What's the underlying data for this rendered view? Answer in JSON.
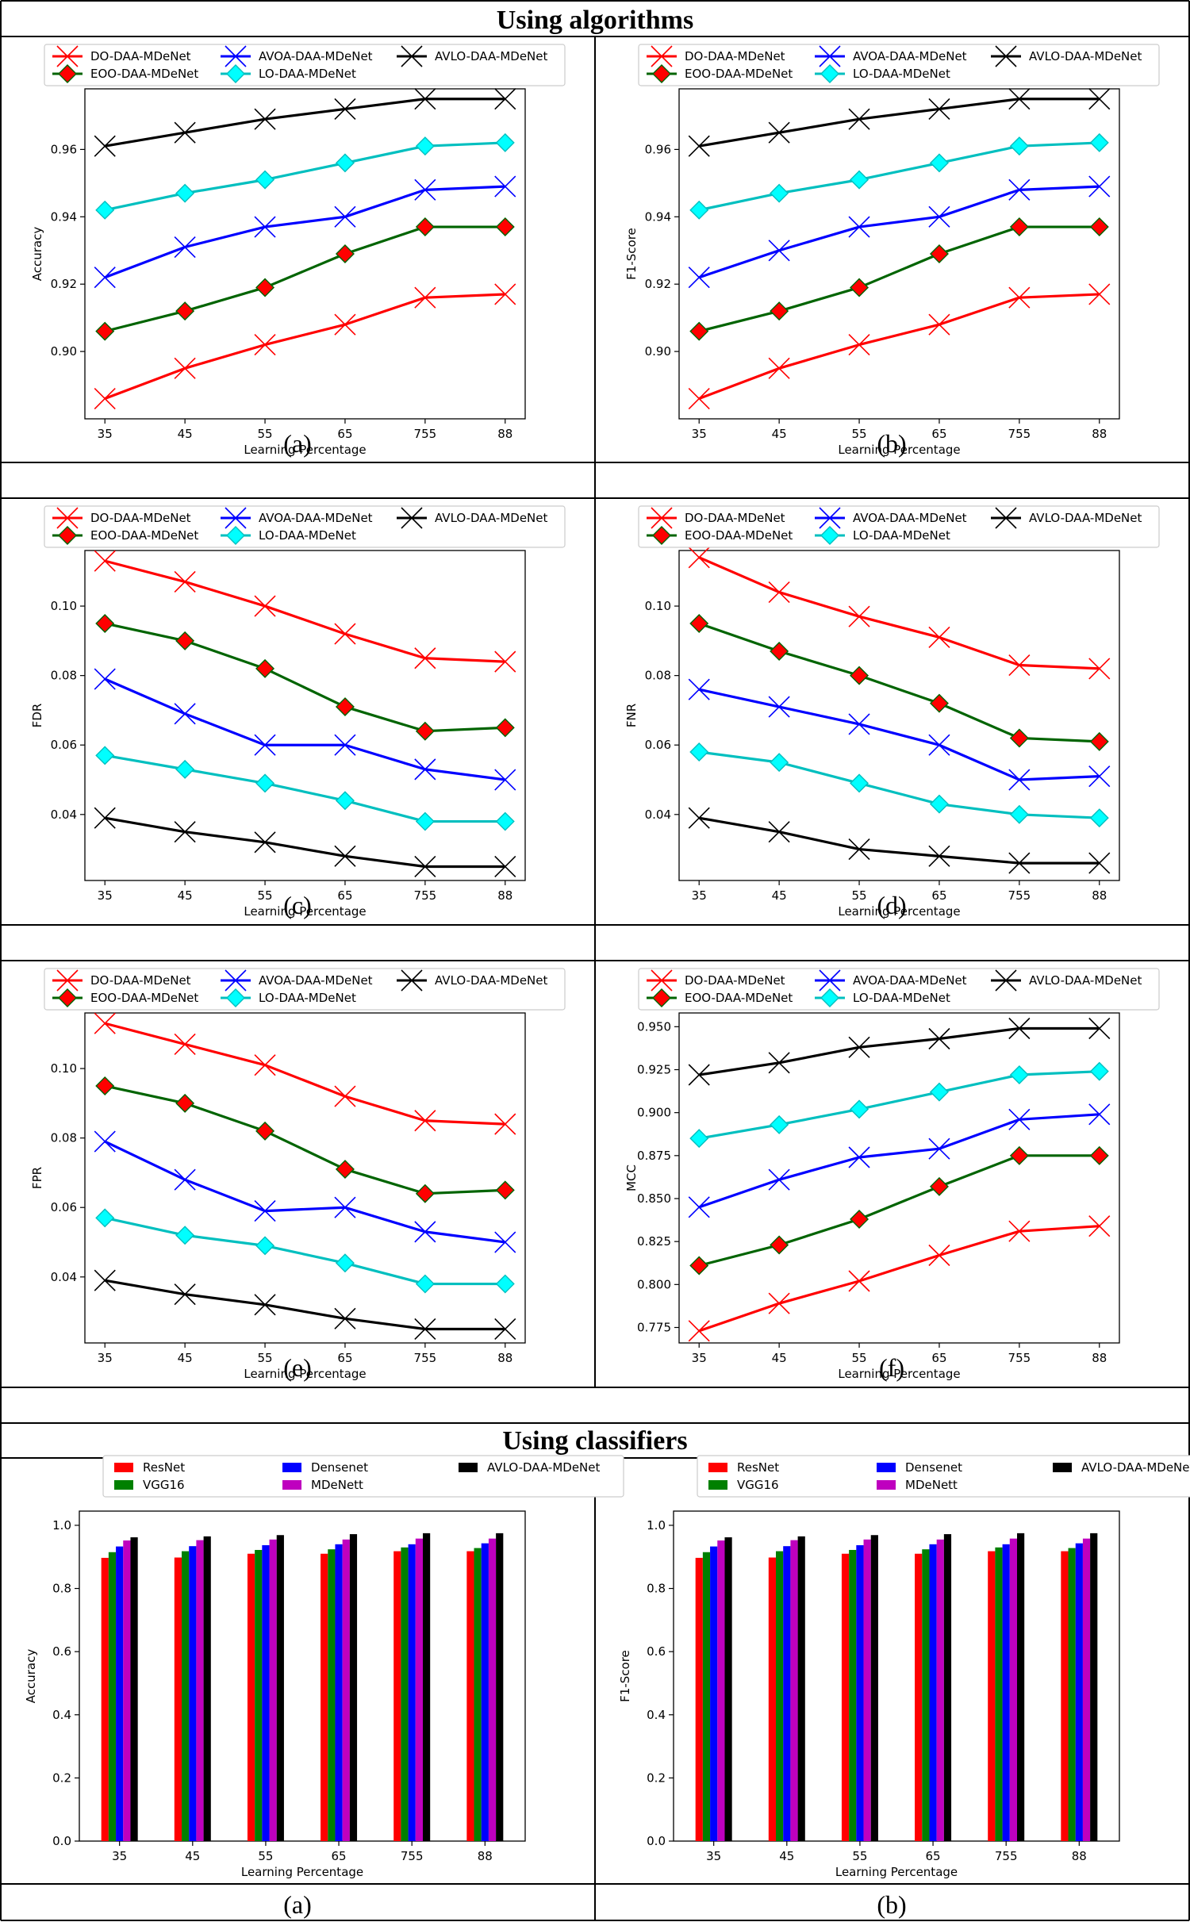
{
  "sections": {
    "algorithms": "Using algorithms",
    "classifiers": "Using classifiers"
  },
  "colors": {
    "DO": "#ff0000",
    "EOO": "#006400",
    "EOO_marker": "#ff0000",
    "AVOA": "#0000ff",
    "LO": "#00bfbf",
    "LO_marker": "#00ffff",
    "AVLO": "#000000",
    "ResNet": "#ff0000",
    "VGG16": "#008000",
    "Densenet": "#0000ff",
    "MDeNett": "#bf00bf",
    "AVLO_bar": "#000000"
  },
  "chart_data": [
    {
      "id": "alg-a",
      "type": "line",
      "caption": "(a)",
      "xlabel": "Learning Percentage",
      "ylabel": "Accuracy",
      "categories": [
        "35",
        "45",
        "55",
        "65",
        "755",
        "88"
      ],
      "ylim": [
        0.88,
        0.978
      ],
      "yticks": [
        0.9,
        0.92,
        0.94,
        0.96
      ],
      "ytick_labels": [
        "0.90",
        "0.92",
        "0.94",
        "0.96"
      ],
      "legend": "top",
      "series": [
        {
          "name": "DO-DAA-MDeNet",
          "key": "DO",
          "marker": "x",
          "values": [
            0.886,
            0.895,
            0.902,
            0.908,
            0.916,
            0.917
          ]
        },
        {
          "name": "EOO-DAA-MDeNet",
          "key": "EOO",
          "marker": "diamond",
          "values": [
            0.906,
            0.912,
            0.919,
            0.929,
            0.937,
            0.937
          ]
        },
        {
          "name": "AVOA-DAA-MDeNet",
          "key": "AVOA",
          "marker": "x",
          "values": [
            0.922,
            0.931,
            0.937,
            0.94,
            0.948,
            0.949
          ]
        },
        {
          "name": "LO-DAA-MDeNet",
          "key": "LO",
          "marker": "diamond",
          "values": [
            0.942,
            0.947,
            0.951,
            0.956,
            0.961,
            0.962
          ]
        },
        {
          "name": "AVLO-DAA-MDeNet",
          "key": "AVLO",
          "marker": "x",
          "values": [
            0.961,
            0.965,
            0.969,
            0.972,
            0.975,
            0.975
          ]
        }
      ]
    },
    {
      "id": "alg-b",
      "type": "line",
      "caption": "(b)",
      "xlabel": "Learning Percentage",
      "ylabel": "F1-Score",
      "categories": [
        "35",
        "45",
        "55",
        "65",
        "755",
        "88"
      ],
      "ylim": [
        0.88,
        0.978
      ],
      "yticks": [
        0.9,
        0.92,
        0.94,
        0.96
      ],
      "ytick_labels": [
        "0.90",
        "0.92",
        "0.94",
        "0.96"
      ],
      "legend": "top",
      "series": [
        {
          "name": "DO-DAA-MDeNet",
          "key": "DO",
          "marker": "x",
          "values": [
            0.886,
            0.895,
            0.902,
            0.908,
            0.916,
            0.917
          ]
        },
        {
          "name": "EOO-DAA-MDeNet",
          "key": "EOO",
          "marker": "diamond",
          "values": [
            0.906,
            0.912,
            0.919,
            0.929,
            0.937,
            0.937
          ]
        },
        {
          "name": "AVOA-DAA-MDeNet",
          "key": "AVOA",
          "marker": "x",
          "values": [
            0.922,
            0.93,
            0.937,
            0.94,
            0.948,
            0.949
          ]
        },
        {
          "name": "LO-DAA-MDeNet",
          "key": "LO",
          "marker": "diamond",
          "values": [
            0.942,
            0.947,
            0.951,
            0.956,
            0.961,
            0.962
          ]
        },
        {
          "name": "AVLO-DAA-MDeNet",
          "key": "AVLO",
          "marker": "x",
          "values": [
            0.961,
            0.965,
            0.969,
            0.972,
            0.975,
            0.975
          ]
        }
      ]
    },
    {
      "id": "alg-c",
      "type": "line",
      "caption": "(c)",
      "xlabel": "Learning Percentage",
      "ylabel": "FDR",
      "categories": [
        "35",
        "45",
        "55",
        "65",
        "755",
        "88"
      ],
      "ylim": [
        0.021,
        0.116
      ],
      "yticks": [
        0.04,
        0.06,
        0.08,
        0.1
      ],
      "ytick_labels": [
        "0.04",
        "0.06",
        "0.08",
        "0.10"
      ],
      "legend": "top",
      "series": [
        {
          "name": "DO-DAA-MDeNet",
          "key": "DO",
          "marker": "x",
          "values": [
            0.113,
            0.107,
            0.1,
            0.092,
            0.085,
            0.084
          ]
        },
        {
          "name": "EOO-DAA-MDeNet",
          "key": "EOO",
          "marker": "diamond",
          "values": [
            0.095,
            0.09,
            0.082,
            0.071,
            0.064,
            0.065
          ]
        },
        {
          "name": "AVOA-DAA-MDeNet",
          "key": "AVOA",
          "marker": "x",
          "values": [
            0.079,
            0.069,
            0.06,
            0.06,
            0.053,
            0.05
          ]
        },
        {
          "name": "LO-DAA-MDeNet",
          "key": "LO",
          "marker": "diamond",
          "values": [
            0.057,
            0.053,
            0.049,
            0.044,
            0.038,
            0.038
          ]
        },
        {
          "name": "AVLO-DAA-MDeNet",
          "key": "AVLO",
          "marker": "x",
          "values": [
            0.039,
            0.035,
            0.032,
            0.028,
            0.025,
            0.025
          ]
        }
      ]
    },
    {
      "id": "alg-d",
      "type": "line",
      "caption": "(d)",
      "xlabel": "Learning Percentage",
      "ylabel": "FNR",
      "categories": [
        "35",
        "45",
        "55",
        "65",
        "755",
        "88"
      ],
      "ylim": [
        0.021,
        0.116
      ],
      "yticks": [
        0.04,
        0.06,
        0.08,
        0.1
      ],
      "ytick_labels": [
        "0.04",
        "0.06",
        "0.08",
        "0.10"
      ],
      "legend": "top",
      "series": [
        {
          "name": "DO-DAA-MDeNet",
          "key": "DO",
          "marker": "x",
          "values": [
            0.114,
            0.104,
            0.097,
            0.091,
            0.083,
            0.082
          ]
        },
        {
          "name": "EOO-DAA-MDeNet",
          "key": "EOO",
          "marker": "diamond",
          "values": [
            0.095,
            0.087,
            0.08,
            0.072,
            0.062,
            0.061
          ]
        },
        {
          "name": "AVOA-DAA-MDeNet",
          "key": "AVOA",
          "marker": "x",
          "values": [
            0.076,
            0.071,
            0.066,
            0.06,
            0.05,
            0.051
          ]
        },
        {
          "name": "LO-DAA-MDeNet",
          "key": "LO",
          "marker": "diamond",
          "values": [
            0.058,
            0.055,
            0.049,
            0.043,
            0.04,
            0.039
          ]
        },
        {
          "name": "AVLO-DAA-MDeNet",
          "key": "AVLO",
          "marker": "x",
          "values": [
            0.039,
            0.035,
            0.03,
            0.028,
            0.026,
            0.026
          ]
        }
      ]
    },
    {
      "id": "alg-e",
      "type": "line",
      "caption": "(e)",
      "xlabel": "Learning Percentage",
      "ylabel": "FPR",
      "categories": [
        "35",
        "45",
        "55",
        "65",
        "755",
        "88"
      ],
      "ylim": [
        0.021,
        0.116
      ],
      "yticks": [
        0.04,
        0.06,
        0.08,
        0.1
      ],
      "ytick_labels": [
        "0.04",
        "0.06",
        "0.08",
        "0.10"
      ],
      "legend": "top",
      "series": [
        {
          "name": "DO-DAA-MDeNet",
          "key": "DO",
          "marker": "x",
          "values": [
            0.113,
            0.107,
            0.101,
            0.092,
            0.085,
            0.084
          ]
        },
        {
          "name": "EOO-DAA-MDeNet",
          "key": "EOO",
          "marker": "diamond",
          "values": [
            0.095,
            0.09,
            0.082,
            0.071,
            0.064,
            0.065
          ]
        },
        {
          "name": "AVOA-DAA-MDeNet",
          "key": "AVOA",
          "marker": "x",
          "values": [
            0.079,
            0.068,
            0.059,
            0.06,
            0.053,
            0.05
          ]
        },
        {
          "name": "LO-DAA-MDeNet",
          "key": "LO",
          "marker": "diamond",
          "values": [
            0.057,
            0.052,
            0.049,
            0.044,
            0.038,
            0.038
          ]
        },
        {
          "name": "AVLO-DAA-MDeNet",
          "key": "AVLO",
          "marker": "x",
          "values": [
            0.039,
            0.035,
            0.032,
            0.028,
            0.025,
            0.025
          ]
        }
      ]
    },
    {
      "id": "alg-f",
      "type": "line",
      "caption": "(f)",
      "xlabel": "Learning Percentage",
      "ylabel": "MCC",
      "categories": [
        "35",
        "45",
        "55",
        "65",
        "755",
        "88"
      ],
      "ylim": [
        0.766,
        0.958
      ],
      "yticks": [
        0.775,
        0.8,
        0.825,
        0.85,
        0.875,
        0.9,
        0.925,
        0.95
      ],
      "ytick_labels": [
        "0.775",
        "0.800",
        "0.825",
        "0.850",
        "0.875",
        "0.900",
        "0.925",
        "0.950"
      ],
      "legend": "top",
      "series": [
        {
          "name": "DO-DAA-MDeNet",
          "key": "DO",
          "marker": "x",
          "values": [
            0.773,
            0.789,
            0.802,
            0.817,
            0.831,
            0.834
          ]
        },
        {
          "name": "EOO-DAA-MDeNet",
          "key": "EOO",
          "marker": "diamond",
          "values": [
            0.811,
            0.823,
            0.838,
            0.857,
            0.875,
            0.875
          ]
        },
        {
          "name": "AVOA-DAA-MDeNet",
          "key": "AVOA",
          "marker": "x",
          "values": [
            0.845,
            0.861,
            0.874,
            0.879,
            0.896,
            0.899
          ]
        },
        {
          "name": "LO-DAA-MDeNet",
          "key": "LO",
          "marker": "diamond",
          "values": [
            0.885,
            0.893,
            0.902,
            0.912,
            0.922,
            0.924
          ]
        },
        {
          "name": "AVLO-DAA-MDeNet",
          "key": "AVLO",
          "marker": "x",
          "values": [
            0.922,
            0.929,
            0.938,
            0.943,
            0.949,
            0.949
          ]
        }
      ]
    },
    {
      "id": "cls-a",
      "type": "bar",
      "caption": "(a)",
      "xlabel": "Learning Percentage",
      "ylabel": "Accuracy",
      "categories": [
        "35",
        "45",
        "55",
        "65",
        "755",
        "88"
      ],
      "ylim": [
        0,
        1.045
      ],
      "yticks": [
        0.0,
        0.2,
        0.4,
        0.6,
        0.8,
        1.0
      ],
      "ytick_labels": [
        "0.0",
        "0.2",
        "0.4",
        "0.6",
        "0.8",
        "1.0"
      ],
      "legend": "top",
      "series": [
        {
          "name": "ResNet",
          "key": "ResNet",
          "values": [
            0.897,
            0.898,
            0.91,
            0.91,
            0.918,
            0.918
          ]
        },
        {
          "name": "VGG16",
          "key": "VGG16",
          "values": [
            0.915,
            0.918,
            0.922,
            0.924,
            0.93,
            0.928
          ]
        },
        {
          "name": "Densenet",
          "key": "Densenet",
          "values": [
            0.933,
            0.934,
            0.937,
            0.94,
            0.94,
            0.943
          ]
        },
        {
          "name": "MDeNett",
          "key": "MDeNett",
          "values": [
            0.952,
            0.953,
            0.955,
            0.955,
            0.958,
            0.958
          ]
        },
        {
          "name": "AVLO-DAA-MDeNet",
          "key": "AVLO_bar",
          "values": [
            0.962,
            0.965,
            0.969,
            0.972,
            0.975,
            0.975
          ]
        }
      ]
    },
    {
      "id": "cls-b",
      "type": "bar",
      "caption": "(b)",
      "xlabel": "Learning Percentage",
      "ylabel": "F1-Score",
      "categories": [
        "35",
        "45",
        "55",
        "65",
        "755",
        "88"
      ],
      "ylim": [
        0,
        1.045
      ],
      "yticks": [
        0.0,
        0.2,
        0.4,
        0.6,
        0.8,
        1.0
      ],
      "ytick_labels": [
        "0.0",
        "0.2",
        "0.4",
        "0.6",
        "0.8",
        "1.0"
      ],
      "legend": "top",
      "series": [
        {
          "name": "ResNet",
          "key": "ResNet",
          "values": [
            0.897,
            0.898,
            0.91,
            0.91,
            0.918,
            0.918
          ]
        },
        {
          "name": "VGG16",
          "key": "VGG16",
          "values": [
            0.915,
            0.918,
            0.922,
            0.924,
            0.93,
            0.928
          ]
        },
        {
          "name": "Densenet",
          "key": "Densenet",
          "values": [
            0.933,
            0.934,
            0.937,
            0.94,
            0.94,
            0.943
          ]
        },
        {
          "name": "MDeNett",
          "key": "MDeNett",
          "values": [
            0.952,
            0.953,
            0.955,
            0.955,
            0.958,
            0.958
          ]
        },
        {
          "name": "AVLO-DAA-MDeNet",
          "key": "AVLO_bar",
          "values": [
            0.962,
            0.965,
            0.969,
            0.972,
            0.975,
            0.975
          ]
        }
      ]
    }
  ]
}
